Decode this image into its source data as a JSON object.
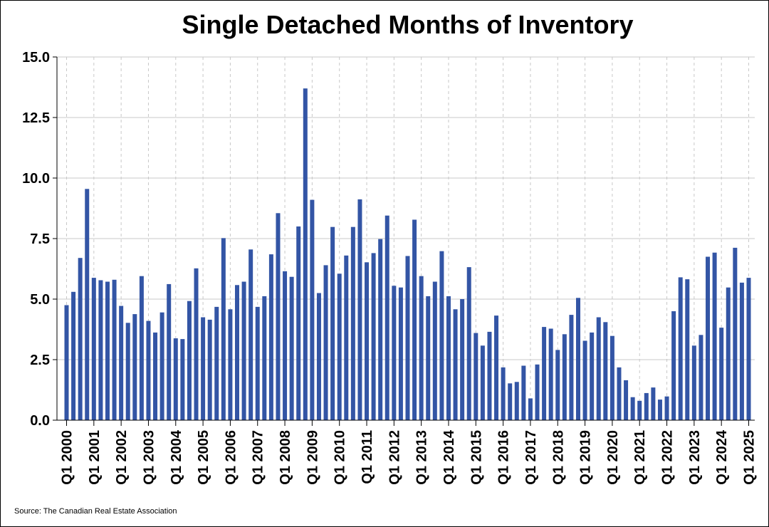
{
  "chart_data": {
    "type": "bar",
    "title": "Single Detached Months of Inventory",
    "xlabel": "",
    "ylabel": "",
    "ylim": [
      0,
      15
    ],
    "yticks": [
      "0.0",
      "2.5",
      "5.0",
      "7.5",
      "10.0",
      "12.5",
      "15.0"
    ],
    "grid": true,
    "bar_color": "#3355a5",
    "tick_labels": [
      "Q1 2000",
      "Q1 2001",
      "Q1 2002",
      "Q1 2003",
      "Q1 2004",
      "Q1 2005",
      "Q1 2006",
      "Q1 2007",
      "Q1 2008",
      "Q1 2009",
      "Q1 2010",
      "Q1 2011",
      "Q1 2012",
      "Q1 2013",
      "Q1 2014",
      "Q1 2015",
      "Q1 2016",
      "Q1 2017",
      "Q1 2018",
      "Q1 2019",
      "Q1 2020",
      "Q1 2021",
      "Q1 2022",
      "Q1 2023",
      "Q1 2024",
      "Q1 2025"
    ],
    "values": [
      4.75,
      5.3,
      6.7,
      9.55,
      5.88,
      5.78,
      5.72,
      5.8,
      4.72,
      4.02,
      4.38,
      5.95,
      4.1,
      3.62,
      4.45,
      5.62,
      3.38,
      3.35,
      4.92,
      6.27,
      4.25,
      4.15,
      4.68,
      7.52,
      4.58,
      5.58,
      5.72,
      7.05,
      4.68,
      5.12,
      6.85,
      8.55,
      6.15,
      5.92,
      8.0,
      13.7,
      9.1,
      5.25,
      6.4,
      7.98,
      6.05,
      6.8,
      7.98,
      9.12,
      6.52,
      6.9,
      7.48,
      8.45,
      5.55,
      5.48,
      6.78,
      8.28,
      5.95,
      5.12,
      5.72,
      6.98,
      5.12,
      4.58,
      5.0,
      6.32,
      3.6,
      3.08,
      3.65,
      4.32,
      2.18,
      1.52,
      1.58,
      2.25,
      0.9,
      2.3,
      3.85,
      3.78,
      2.9,
      3.55,
      4.35,
      5.05,
      3.28,
      3.62,
      4.25,
      4.05,
      3.48,
      2.18,
      1.65,
      0.95,
      0.8,
      1.12,
      1.35,
      0.85,
      0.98,
      4.5,
      5.9,
      5.82,
      3.08,
      3.52,
      6.75,
      6.92,
      3.82,
      5.48,
      7.12,
      5.68,
      5.88
    ]
  },
  "source": "Source: The Canadian Real Estate Association"
}
